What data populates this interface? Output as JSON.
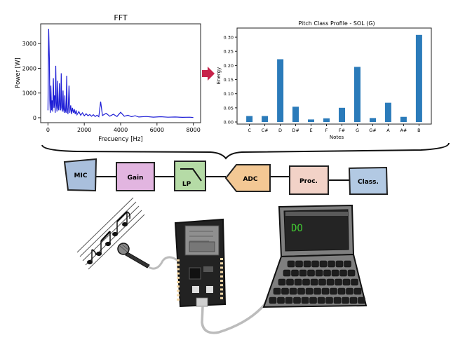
{
  "chart_data": [
    {
      "type": "line",
      "title": "FFT",
      "xlabel": "Frecuency [Hz]",
      "ylabel": "Power [W]",
      "xlim": [
        -400,
        8400
      ],
      "ylim": [
        -200,
        3800
      ],
      "x_ticks": [
        0,
        2000,
        4000,
        6000,
        8000
      ],
      "y_ticks": [
        0,
        1000,
        2000,
        3000
      ],
      "series": [
        {
          "color": "#1f1fd6",
          "x": [
            0,
            40,
            80,
            100,
            130,
            160,
            200,
            230,
            260,
            300,
            330,
            360,
            400,
            430,
            460,
            500,
            530,
            560,
            600,
            630,
            660,
            700,
            730,
            760,
            800,
            830,
            860,
            900,
            930,
            960,
            1000,
            1030,
            1060,
            1100,
            1130,
            1160,
            1200,
            1250,
            1300,
            1350,
            1400,
            1450,
            1500,
            1550,
            1600,
            1700,
            1800,
            1900,
            2000,
            2100,
            2200,
            2300,
            2400,
            2500,
            2600,
            2700,
            2800,
            2900,
            3000,
            3200,
            3400,
            3600,
            3800,
            4000,
            4200,
            4400,
            4600,
            4800,
            5000,
            5400,
            5800,
            6200,
            6600,
            7000,
            7400,
            7800,
            8000
          ],
          "y": [
            300,
            3600,
            2400,
            700,
            200,
            1300,
            300,
            700,
            250,
            1600,
            400,
            900,
            200,
            2100,
            600,
            250,
            1500,
            400,
            300,
            1400,
            500,
            300,
            1800,
            400,
            250,
            1100,
            350,
            200,
            900,
            300,
            200,
            1700,
            400,
            150,
            600,
            1300,
            200,
            500,
            150,
            400,
            200,
            350,
            150,
            300,
            120,
            250,
            100,
            200,
            80,
            160,
            80,
            130,
            60,
            120,
            50,
            100,
            40,
            650,
            90,
            180,
            60,
            140,
            50,
            220,
            60,
            100,
            40,
            80,
            30,
            50,
            25,
            40,
            20,
            30,
            15,
            20,
            10
          ]
        }
      ]
    },
    {
      "type": "bar",
      "title": "Pitch Class Profile - SOL (G)",
      "xlabel": "Notes",
      "ylabel": "Energy",
      "ylim": [
        0,
        0.32
      ],
      "y_ticks": [
        "0.00",
        "0.05",
        "0.10",
        "0.15",
        "0.20",
        "0.25",
        "0.30"
      ],
      "categories": [
        "C",
        "C#",
        "D",
        "D#",
        "E",
        "F",
        "F#",
        "G",
        "G#",
        "A",
        "A#",
        "B"
      ],
      "values": [
        0.021,
        0.021,
        0.222,
        0.054,
        0.009,
        0.013,
        0.05,
        0.195,
        0.014,
        0.068,
        0.018,
        0.308
      ],
      "color": "#2b7bba"
    }
  ],
  "pipeline": {
    "blocks": [
      "MIC",
      "Gain",
      "LP",
      "ADC",
      "Proc.",
      "Class."
    ],
    "colors": {
      "mic": "#a9bfdc",
      "gain": "#e2b5e0",
      "lp": "#b5dba6",
      "adc": "#f3c894",
      "proc": "#f2d2c7",
      "class": "#b2c9e3"
    }
  },
  "laptop": {
    "screen_text": "DO",
    "screen_text_color": "#41c832"
  },
  "colors": {
    "arrow": "#c7234a"
  }
}
